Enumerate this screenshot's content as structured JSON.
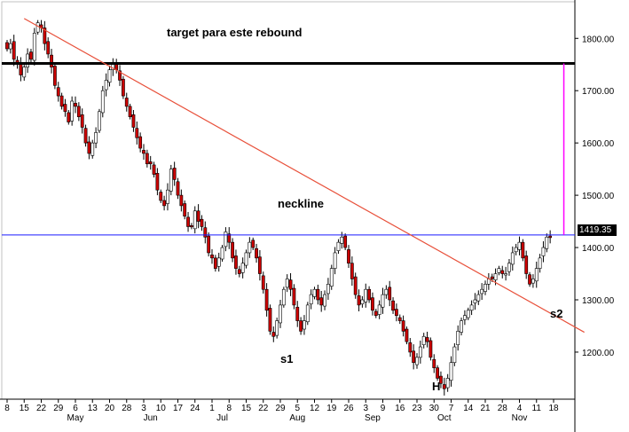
{
  "chart_data": {
    "type": "candlestick",
    "title": "target para este rebound",
    "ylim": [
      1110,
      1870
    ],
    "y_ticks": [
      {
        "value": 1800,
        "label": "1800.00"
      },
      {
        "value": 1700,
        "label": "1700.00"
      },
      {
        "value": 1600,
        "label": "1600.00"
      },
      {
        "value": 1500,
        "label": "1500.00"
      },
      {
        "value": 1400,
        "label": "1400.00"
      },
      {
        "value": 1300,
        "label": "1300.00"
      },
      {
        "value": 1200,
        "label": "1200.00"
      }
    ],
    "x_ticks": [
      {
        "label": "8",
        "idx": 0
      },
      {
        "label": "15",
        "idx": 5
      },
      {
        "label": "22",
        "idx": 10
      },
      {
        "label": "29",
        "idx": 15
      },
      {
        "label": "6",
        "idx": 20
      },
      {
        "label": "13",
        "idx": 25
      },
      {
        "label": "20",
        "idx": 30
      },
      {
        "label": "28",
        "idx": 35
      },
      {
        "label": "3",
        "idx": 40
      },
      {
        "label": "10",
        "idx": 45
      },
      {
        "label": "17",
        "idx": 50
      },
      {
        "label": "24",
        "idx": 55
      },
      {
        "label": "1",
        "idx": 60
      },
      {
        "label": "8",
        "idx": 65
      },
      {
        "label": "15",
        "idx": 70
      },
      {
        "label": "22",
        "idx": 75
      },
      {
        "label": "29",
        "idx": 80
      },
      {
        "label": "5",
        "idx": 85
      },
      {
        "label": "12",
        "idx": 90
      },
      {
        "label": "19",
        "idx": 95
      },
      {
        "label": "26",
        "idx": 100
      },
      {
        "label": "3",
        "idx": 105
      },
      {
        "label": "9",
        "idx": 110
      },
      {
        "label": "16",
        "idx": 115
      },
      {
        "label": "23",
        "idx": 120
      },
      {
        "label": "30",
        "idx": 125
      },
      {
        "label": "7",
        "idx": 130
      },
      {
        "label": "14",
        "idx": 135
      },
      {
        "label": "21",
        "idx": 140
      },
      {
        "label": "28",
        "idx": 145
      },
      {
        "label": "4",
        "idx": 150
      },
      {
        "label": "11",
        "idx": 155
      },
      {
        "label": "18",
        "idx": 160
      }
    ],
    "month_labels": [
      {
        "label": "May",
        "idx": 20
      },
      {
        "label": "Jun",
        "idx": 42
      },
      {
        "label": "Jul",
        "idx": 63
      },
      {
        "label": "Aug",
        "idx": 85
      },
      {
        "label": "Sep",
        "idx": 107
      },
      {
        "label": "Oct",
        "idx": 128
      },
      {
        "label": "Nov",
        "idx": 150
      }
    ],
    "close": [
      1780,
      1790,
      1760,
      1750,
      1730,
      1745,
      1770,
      1760,
      1810,
      1830,
      1820,
      1790,
      1770,
      1745,
      1710,
      1690,
      1670,
      1660,
      1640,
      1680,
      1670,
      1650,
      1630,
      1600,
      1580,
      1600,
      1620,
      1660,
      1700,
      1720,
      1740,
      1750,
      1740,
      1720,
      1690,
      1670,
      1650,
      1630,
      1610,
      1590,
      1580,
      1560,
      1560,
      1540,
      1510,
      1490,
      1480,
      1510,
      1550,
      1530,
      1500,
      1480,
      1460,
      1440,
      1440,
      1470,
      1450,
      1440,
      1420,
      1390,
      1380,
      1360,
      1380,
      1400,
      1430,
      1410,
      1380,
      1360,
      1350,
      1370,
      1390,
      1410,
      1400,
      1380,
      1350,
      1320,
      1280,
      1240,
      1230,
      1260,
      1290,
      1320,
      1340,
      1320,
      1290,
      1260,
      1240,
      1260,
      1290,
      1310,
      1320,
      1300,
      1290,
      1310,
      1330,
      1360,
      1390,
      1410,
      1420,
      1400,
      1370,
      1340,
      1310,
      1290,
      1300,
      1320,
      1300,
      1280,
      1270,
      1290,
      1310,
      1320,
      1300,
      1280,
      1270,
      1260,
      1240,
      1220,
      1200,
      1180,
      1190,
      1210,
      1230,
      1220,
      1190,
      1170,
      1150,
      1140,
      1130,
      1150,
      1180,
      1210,
      1240,
      1260,
      1270,
      1280,
      1290,
      1300,
      1310,
      1320,
      1330,
      1340,
      1340,
      1350,
      1360,
      1350,
      1350,
      1370,
      1390,
      1400,
      1410,
      1380,
      1350,
      1330,
      1340,
      1360,
      1380,
      1400,
      1420,
      1419
    ],
    "series": [
      {
        "name": "neckline",
        "type": "hline",
        "y": 1424
      },
      {
        "name": "target",
        "type": "hline",
        "y": 1752
      }
    ],
    "trendline": {
      "from": [
        5,
        1838
      ],
      "to": [
        169,
        1238
      ]
    },
    "target_measure": {
      "idx": 163,
      "from": 1424,
      "to": 1752
    },
    "last_price": "1419.35",
    "annotations": {
      "neckline": "neckline",
      "s1": "s1",
      "h": "H",
      "s2": "s2"
    },
    "colors": {
      "up": "#ffffff",
      "down": "#cc0000",
      "outline": "#000000",
      "trendline": "#e8503a",
      "neckline": "#1a1aff",
      "target": "#000000",
      "measure": "#ff00ff",
      "frame": "#c0c0c0"
    }
  }
}
